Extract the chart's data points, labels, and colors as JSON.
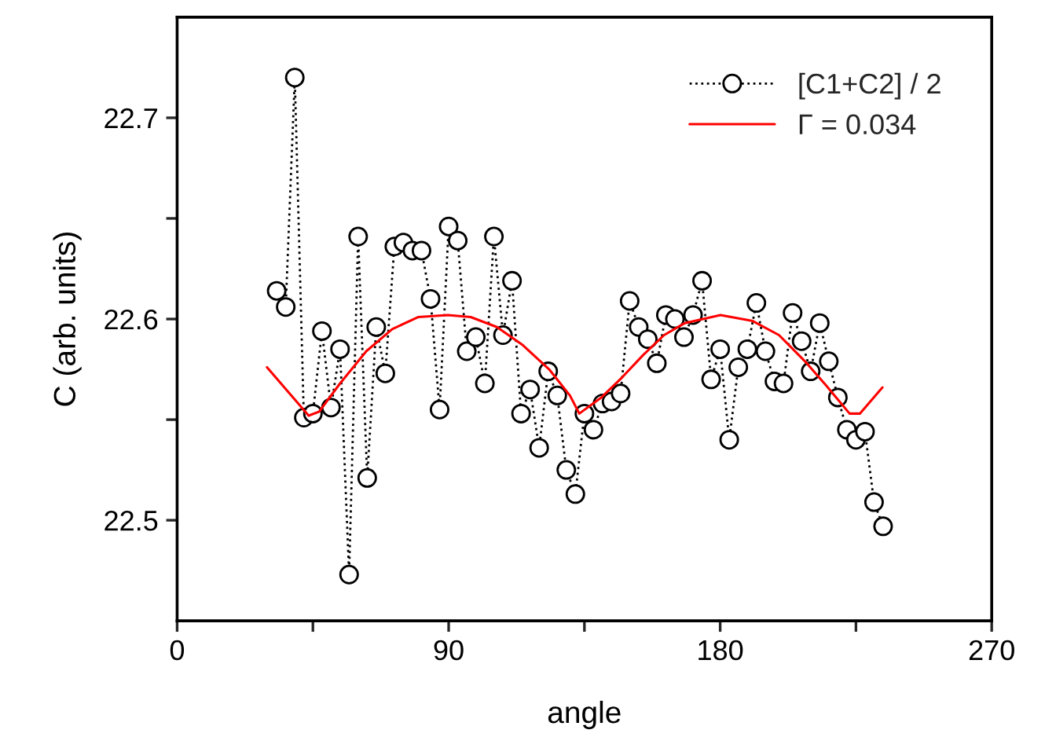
{
  "chart_data": {
    "type": "line",
    "xlabel": "angle",
    "ylabel": "C (arb. units)",
    "xlim": [
      0,
      270
    ],
    "xticks": [
      0,
      {
        "value": 45,
        "label": null
      },
      90,
      {
        "value": 135,
        "label": null
      },
      180,
      {
        "value": 225,
        "label": null
      },
      270
    ],
    "ylim": [
      22.45,
      22.75
    ],
    "yticks": [
      {
        "value": 22.5,
        "label": "22.5"
      },
      {
        "value": 22.55,
        "label": null
      },
      {
        "value": 22.6,
        "label": "22.6"
      },
      {
        "value": 22.65,
        "label": null
      },
      {
        "value": 22.7,
        "label": "22.7"
      }
    ],
    "grid": false,
    "legend": "top right",
    "series": [
      {
        "name": "[C1+C2] / 2",
        "marker": "circle",
        "line_style": "dotted",
        "color": "#000000",
        "x": [
          33,
          36,
          39,
          42,
          45,
          48,
          51,
          54,
          57,
          60,
          63,
          66,
          69,
          72,
          75,
          78,
          81,
          84,
          87,
          90,
          93,
          96,
          99,
          102,
          105,
          108,
          111,
          114,
          117,
          120,
          123,
          126,
          129,
          132,
          135,
          138,
          141,
          144,
          147,
          150,
          153,
          156,
          159,
          162,
          165,
          168,
          171,
          174,
          177,
          180,
          183,
          186,
          189,
          192,
          195,
          198,
          201,
          204,
          207,
          210,
          213,
          216,
          219,
          222,
          225,
          228,
          231,
          234
        ],
        "values": [
          22.614,
          22.606,
          22.72,
          22.551,
          22.553,
          22.594,
          22.556,
          22.585,
          22.473,
          22.641,
          22.521,
          22.596,
          22.573,
          22.636,
          22.638,
          22.634,
          22.634,
          22.61,
          22.555,
          22.646,
          22.639,
          22.584,
          22.591,
          22.568,
          22.641,
          22.592,
          22.619,
          22.553,
          22.565,
          22.536,
          22.574,
          22.562,
          22.525,
          22.513,
          22.553,
          22.545,
          22.558,
          22.559,
          22.563,
          22.609,
          22.596,
          22.59,
          22.578,
          22.602,
          22.6,
          22.591,
          22.602,
          22.619,
          22.57,
          22.585,
          22.54,
          22.576,
          22.585,
          22.608,
          22.584,
          22.569,
          22.568,
          22.603,
          22.589,
          22.574,
          22.598,
          22.579,
          22.561,
          22.545,
          22.54,
          22.544,
          22.509,
          22.497
        ]
      },
      {
        "name": "Γ = 0.034",
        "marker": "none",
        "line_style": "solid",
        "color": "#ff0000",
        "x": [
          29.8,
          36.7,
          43.6,
          47.1,
          54.0,
          62.7,
          71.3,
          80.0,
          89.7,
          97.3,
          106.0,
          114.6,
          123.3,
          130.2,
          133.3,
          140.6,
          147.5,
          154.4,
          161.4,
          168.3,
          180.1,
          190.8,
          199.5,
          208.1,
          215.1,
          222.9,
          226.3,
          233.8
        ],
        "values": [
          22.576,
          22.564,
          22.552,
          22.554,
          22.568,
          22.584,
          22.595,
          22.601,
          22.602,
          22.601,
          22.596,
          22.587,
          22.575,
          22.562,
          22.553,
          22.561,
          22.571,
          22.582,
          22.592,
          22.598,
          22.602,
          22.599,
          22.592,
          22.579,
          22.567,
          22.553,
          22.553,
          22.566
        ]
      }
    ]
  }
}
